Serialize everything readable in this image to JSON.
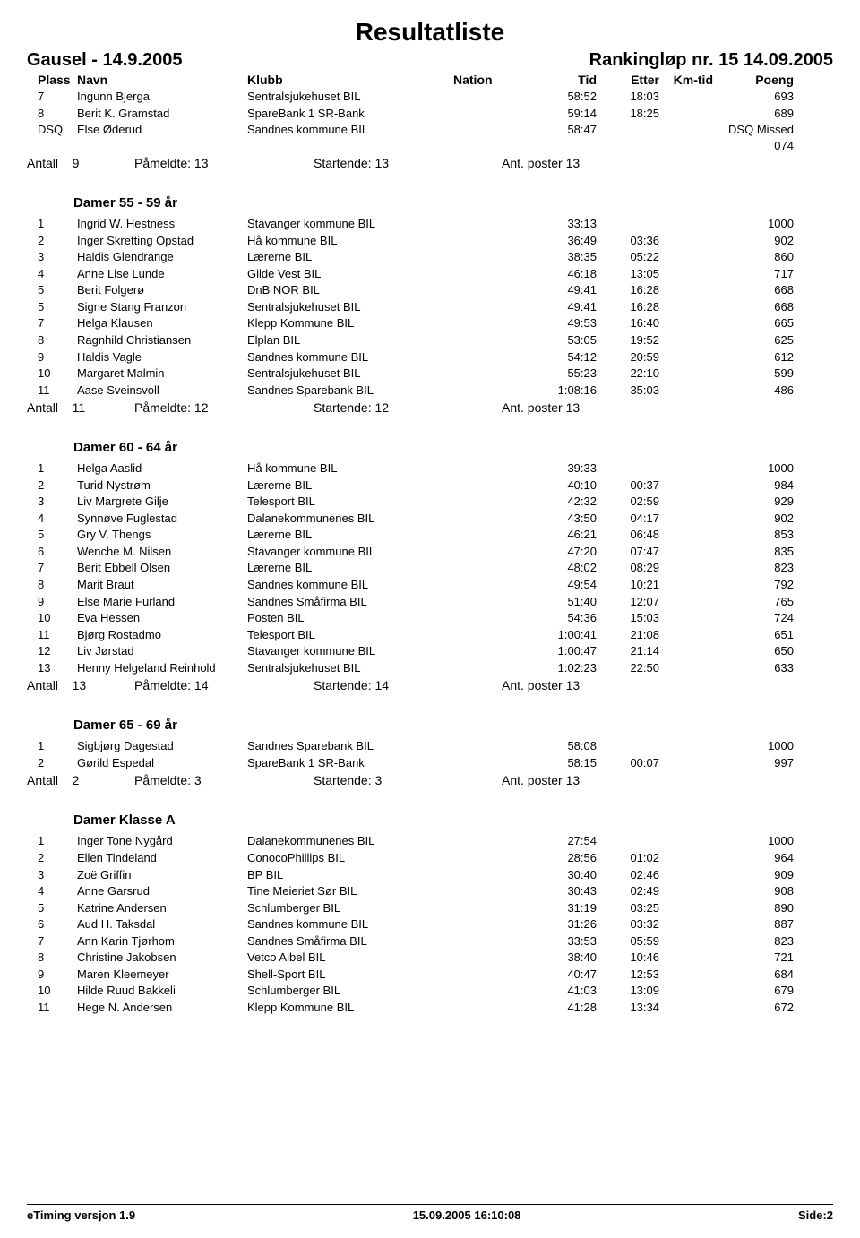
{
  "title": "Resultatliste",
  "event_left": "Gausel - 14.9.2005",
  "event_right": "Rankingløp nr. 15 14.09.2005",
  "columns": {
    "plass": "Plass",
    "navn": "Navn",
    "klubb": "Klubb",
    "nation": "Nation",
    "tid": "Tid",
    "etter": "Etter",
    "kmtid": "Km-tid",
    "poeng": "Poeng"
  },
  "summary_labels": {
    "antall": "Antall",
    "pameldte": "Påmeldte:",
    "startende": "Startende:",
    "ant_poster": "Ant. poster"
  },
  "footer": {
    "left": "eTiming versjon 1.9",
    "center": "15.09.2005 16:10:08",
    "right": "Side:2"
  },
  "top_rows": [
    {
      "plass": "7",
      "navn": "Ingunn Bjerga",
      "klubb": "Sentralsjukehuset BIL",
      "nation": "",
      "tid": "58:52",
      "etter": "18:03",
      "kmtid": "",
      "poeng": "693"
    },
    {
      "plass": "8",
      "navn": "Berit K. Gramstad",
      "klubb": "SpareBank 1 SR-Bank",
      "nation": "",
      "tid": "59:14",
      "etter": "18:25",
      "kmtid": "",
      "poeng": "689"
    },
    {
      "plass": "DSQ",
      "navn": "Else Øderud",
      "klubb": "Sandnes kommune BIL",
      "nation": "",
      "tid": "58:47",
      "etter": "",
      "kmtid": "",
      "poeng": "DSQ Missed 074"
    }
  ],
  "top_summary": {
    "antall": "9",
    "pameldte": "13",
    "startende": "13",
    "poster": "13"
  },
  "groups": [
    {
      "title": "Damer 55 - 59 år",
      "rows": [
        {
          "plass": "1",
          "navn": "Ingrid W. Hestness",
          "klubb": "Stavanger kommune BIL",
          "nation": "",
          "tid": "33:13",
          "etter": "",
          "kmtid": "",
          "poeng": "1000"
        },
        {
          "plass": "2",
          "navn": "Inger Skretting Opstad",
          "klubb": "Hå kommune BIL",
          "nation": "",
          "tid": "36:49",
          "etter": "03:36",
          "kmtid": "",
          "poeng": "902"
        },
        {
          "plass": "3",
          "navn": "Haldis Glendrange",
          "klubb": "Lærerne BIL",
          "nation": "",
          "tid": "38:35",
          "etter": "05:22",
          "kmtid": "",
          "poeng": "860"
        },
        {
          "plass": "4",
          "navn": "Anne Lise Lunde",
          "klubb": "Gilde Vest BIL",
          "nation": "",
          "tid": "46:18",
          "etter": "13:05",
          "kmtid": "",
          "poeng": "717"
        },
        {
          "plass": "5",
          "navn": "Berit Folgerø",
          "klubb": "DnB NOR BIL",
          "nation": "",
          "tid": "49:41",
          "etter": "16:28",
          "kmtid": "",
          "poeng": "668"
        },
        {
          "plass": "5",
          "navn": "Signe Stang Franzon",
          "klubb": "Sentralsjukehuset BIL",
          "nation": "",
          "tid": "49:41",
          "etter": "16:28",
          "kmtid": "",
          "poeng": "668"
        },
        {
          "plass": "7",
          "navn": "Helga Klausen",
          "klubb": "Klepp Kommune BIL",
          "nation": "",
          "tid": "49:53",
          "etter": "16:40",
          "kmtid": "",
          "poeng": "665"
        },
        {
          "plass": "8",
          "navn": "Ragnhild Christiansen",
          "klubb": "Elplan BIL",
          "nation": "",
          "tid": "53:05",
          "etter": "19:52",
          "kmtid": "",
          "poeng": "625"
        },
        {
          "plass": "9",
          "navn": "Haldis Vagle",
          "klubb": "Sandnes kommune BIL",
          "nation": "",
          "tid": "54:12",
          "etter": "20:59",
          "kmtid": "",
          "poeng": "612"
        },
        {
          "plass": "10",
          "navn": "Margaret Malmin",
          "klubb": "Sentralsjukehuset BIL",
          "nation": "",
          "tid": "55:23",
          "etter": "22:10",
          "kmtid": "",
          "poeng": "599"
        },
        {
          "plass": "11",
          "navn": "Aase Sveinsvoll",
          "klubb": "Sandnes Sparebank BIL",
          "nation": "",
          "tid": "1:08:16",
          "etter": "35:03",
          "kmtid": "",
          "poeng": "486"
        }
      ],
      "summary": {
        "antall": "11",
        "pameldte": "12",
        "startende": "12",
        "poster": "13"
      }
    },
    {
      "title": "Damer 60 - 64 år",
      "rows": [
        {
          "plass": "1",
          "navn": "Helga Aaslid",
          "klubb": "Hå kommune BIL",
          "nation": "",
          "tid": "39:33",
          "etter": "",
          "kmtid": "",
          "poeng": "1000"
        },
        {
          "plass": "2",
          "navn": "Turid Nystrøm",
          "klubb": "Lærerne BIL",
          "nation": "",
          "tid": "40:10",
          "etter": "00:37",
          "kmtid": "",
          "poeng": "984"
        },
        {
          "plass": "3",
          "navn": "Liv Margrete Gilje",
          "klubb": "Telesport BIL",
          "nation": "",
          "tid": "42:32",
          "etter": "02:59",
          "kmtid": "",
          "poeng": "929"
        },
        {
          "plass": "4",
          "navn": "Synnøve Fuglestad",
          "klubb": "Dalanekommunenes BIL",
          "nation": "",
          "tid": "43:50",
          "etter": "04:17",
          "kmtid": "",
          "poeng": "902"
        },
        {
          "plass": "5",
          "navn": "Gry V. Thengs",
          "klubb": "Lærerne BIL",
          "nation": "",
          "tid": "46:21",
          "etter": "06:48",
          "kmtid": "",
          "poeng": "853"
        },
        {
          "plass": "6",
          "navn": "Wenche M. Nilsen",
          "klubb": "Stavanger kommune BIL",
          "nation": "",
          "tid": "47:20",
          "etter": "07:47",
          "kmtid": "",
          "poeng": "835"
        },
        {
          "plass": "7",
          "navn": "Berit Ebbell Olsen",
          "klubb": "Lærerne BIL",
          "nation": "",
          "tid": "48:02",
          "etter": "08:29",
          "kmtid": "",
          "poeng": "823"
        },
        {
          "plass": "8",
          "navn": "Marit Braut",
          "klubb": "Sandnes kommune BIL",
          "nation": "",
          "tid": "49:54",
          "etter": "10:21",
          "kmtid": "",
          "poeng": "792"
        },
        {
          "plass": "9",
          "navn": "Else Marie Furland",
          "klubb": "Sandnes Småfirma BIL",
          "nation": "",
          "tid": "51:40",
          "etter": "12:07",
          "kmtid": "",
          "poeng": "765"
        },
        {
          "plass": "10",
          "navn": "Eva Hessen",
          "klubb": "Posten BIL",
          "nation": "",
          "tid": "54:36",
          "etter": "15:03",
          "kmtid": "",
          "poeng": "724"
        },
        {
          "plass": "11",
          "navn": "Bjørg Rostadmo",
          "klubb": "Telesport BIL",
          "nation": "",
          "tid": "1:00:41",
          "etter": "21:08",
          "kmtid": "",
          "poeng": "651"
        },
        {
          "plass": "12",
          "navn": "Liv Jørstad",
          "klubb": "Stavanger kommune BIL",
          "nation": "",
          "tid": "1:00:47",
          "etter": "21:14",
          "kmtid": "",
          "poeng": "650"
        },
        {
          "plass": "13",
          "navn": "Henny Helgeland Reinhold",
          "klubb": "Sentralsjukehuset BIL",
          "nation": "",
          "tid": "1:02:23",
          "etter": "22:50",
          "kmtid": "",
          "poeng": "633"
        }
      ],
      "summary": {
        "antall": "13",
        "pameldte": "14",
        "startende": "14",
        "poster": "13"
      }
    },
    {
      "title": "Damer 65 - 69 år",
      "rows": [
        {
          "plass": "1",
          "navn": "Sigbjørg Dagestad",
          "klubb": "Sandnes Sparebank BIL",
          "nation": "",
          "tid": "58:08",
          "etter": "",
          "kmtid": "",
          "poeng": "1000"
        },
        {
          "plass": "2",
          "navn": "Gørild Espedal",
          "klubb": "SpareBank 1 SR-Bank",
          "nation": "",
          "tid": "58:15",
          "etter": "00:07",
          "kmtid": "",
          "poeng": "997"
        }
      ],
      "summary": {
        "antall": "2",
        "pameldte": "3",
        "startende": "3",
        "poster": "13"
      }
    },
    {
      "title": "Damer Klasse A",
      "rows": [
        {
          "plass": "1",
          "navn": "Inger Tone Nygård",
          "klubb": "Dalanekommunenes BIL",
          "nation": "",
          "tid": "27:54",
          "etter": "",
          "kmtid": "",
          "poeng": "1000"
        },
        {
          "plass": "2",
          "navn": "Ellen Tindeland",
          "klubb": "ConocoPhillips BIL",
          "nation": "",
          "tid": "28:56",
          "etter": "01:02",
          "kmtid": "",
          "poeng": "964"
        },
        {
          "plass": "3",
          "navn": "Zoë Griffin",
          "klubb": "BP BIL",
          "nation": "",
          "tid": "30:40",
          "etter": "02:46",
          "kmtid": "",
          "poeng": "909"
        },
        {
          "plass": "4",
          "navn": "Anne Garsrud",
          "klubb": "Tine Meieriet Sør BIL",
          "nation": "",
          "tid": "30:43",
          "etter": "02:49",
          "kmtid": "",
          "poeng": "908"
        },
        {
          "plass": "5",
          "navn": "Katrine Andersen",
          "klubb": "Schlumberger BIL",
          "nation": "",
          "tid": "31:19",
          "etter": "03:25",
          "kmtid": "",
          "poeng": "890"
        },
        {
          "plass": "6",
          "navn": "Aud H. Taksdal",
          "klubb": "Sandnes kommune BIL",
          "nation": "",
          "tid": "31:26",
          "etter": "03:32",
          "kmtid": "",
          "poeng": "887"
        },
        {
          "plass": "7",
          "navn": "Ann Karin Tjørhom",
          "klubb": "Sandnes Småfirma BIL",
          "nation": "",
          "tid": "33:53",
          "etter": "05:59",
          "kmtid": "",
          "poeng": "823"
        },
        {
          "plass": "8",
          "navn": "Christine Jakobsen",
          "klubb": "Vetco Aibel BIL",
          "nation": "",
          "tid": "38:40",
          "etter": "10:46",
          "kmtid": "",
          "poeng": "721"
        },
        {
          "plass": "9",
          "navn": "Maren Kleemeyer",
          "klubb": "Shell-Sport BIL",
          "nation": "",
          "tid": "40:47",
          "etter": "12:53",
          "kmtid": "",
          "poeng": "684"
        },
        {
          "plass": "10",
          "navn": "Hilde Ruud Bakkeli",
          "klubb": "Schlumberger BIL",
          "nation": "",
          "tid": "41:03",
          "etter": "13:09",
          "kmtid": "",
          "poeng": "679"
        },
        {
          "plass": "11",
          "navn": "Hege N. Andersen",
          "klubb": "Klepp Kommune BIL",
          "nation": "",
          "tid": "41:28",
          "etter": "13:34",
          "kmtid": "",
          "poeng": "672"
        }
      ],
      "summary": null
    }
  ]
}
